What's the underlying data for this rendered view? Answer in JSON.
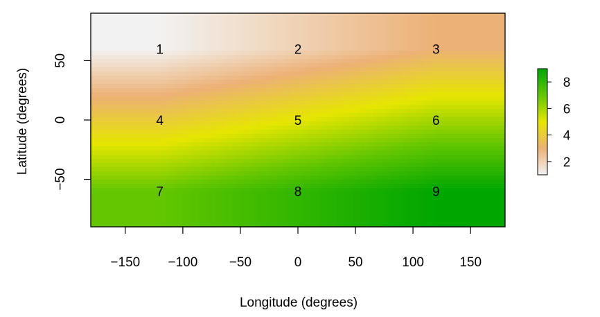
{
  "chart_data": {
    "type": "heatmap",
    "title": "",
    "xlabel": "Longitude (degrees)",
    "ylabel": "Latitude (degrees)",
    "xlim": [
      -180,
      180
    ],
    "ylim": [
      -90,
      90
    ],
    "xticks": [
      -150,
      -100,
      -50,
      0,
      50,
      100,
      150
    ],
    "xtick_labels": [
      "−150",
      "−100",
      "−50",
      "0",
      "50",
      "100",
      "150"
    ],
    "yticks": [
      -50,
      0,
      50
    ],
    "ytick_labels": [
      "−50",
      "0",
      "50"
    ],
    "grid": false,
    "colorbar": {
      "range": [
        1,
        9
      ],
      "ticks": [
        2,
        4,
        6,
        8
      ],
      "tick_labels": [
        "2",
        "4",
        "6",
        "8"
      ],
      "palette": "terrain",
      "palette_colors": [
        "#F2F2F2",
        "#ECB176",
        "#E6E600",
        "#63C600",
        "#00A600"
      ]
    },
    "cells": [
      {
        "label": "1",
        "lon": -120,
        "lat": 60,
        "value": 1
      },
      {
        "label": "2",
        "lon": 0,
        "lat": 60,
        "value": 2
      },
      {
        "label": "3",
        "lon": 120,
        "lat": 60,
        "value": 3
      },
      {
        "label": "4",
        "lon": -120,
        "lat": 0,
        "value": 4
      },
      {
        "label": "5",
        "lon": 0,
        "lat": 0,
        "value": 5
      },
      {
        "label": "6",
        "lon": 120,
        "lat": 0,
        "value": 6
      },
      {
        "label": "7",
        "lon": -120,
        "lat": -60,
        "value": 7
      },
      {
        "label": "8",
        "lon": 0,
        "lat": -60,
        "value": 8
      },
      {
        "label": "9",
        "lon": 120,
        "lat": -60,
        "value": 9
      }
    ]
  }
}
